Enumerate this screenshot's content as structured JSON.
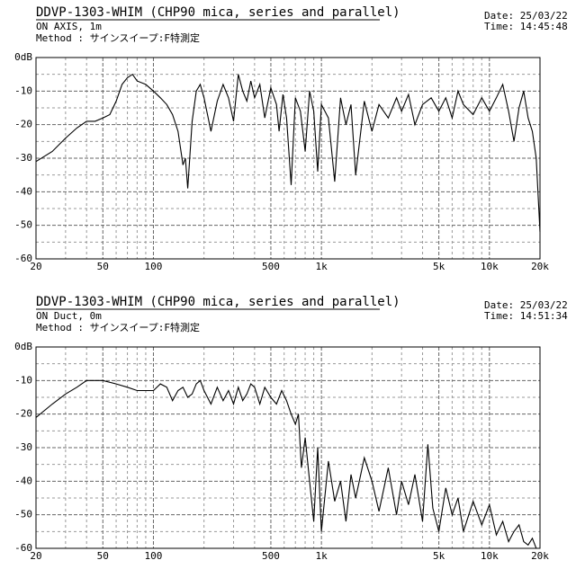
{
  "chart_data": [
    {
      "type": "line",
      "title": "DDVP-1303-WHIM (CHP90 mica, series and parallel)",
      "subtitle": "ON AXIS, 1m",
      "method": "Method : サインスイープ:F特測定",
      "date": "Date: 25/03/22",
      "time": "Time: 14:45:48",
      "log_x": true,
      "grid": true,
      "color": "#000000",
      "xlim": [
        20,
        20000
      ],
      "ylim": [
        -60,
        0
      ],
      "xticks": [
        20,
        50,
        100,
        500,
        {
          "value": 1000,
          "label": "1k"
        },
        {
          "value": 5000,
          "label": "5k"
        },
        {
          "value": 10000,
          "label": "10k"
        },
        {
          "value": 20000,
          "label": "20k"
        }
      ],
      "xminor_ticks": [
        30,
        40,
        60,
        70,
        80,
        90,
        200,
        300,
        400,
        600,
        700,
        800,
        900,
        2000,
        3000,
        4000,
        6000,
        7000,
        8000,
        9000
      ],
      "yticks": [
        {
          "value": 0,
          "label": "0dB"
        },
        -10,
        -20,
        -30,
        -40,
        -50,
        -60
      ],
      "yminor_ticks": [
        -5,
        -15,
        -25,
        -35,
        -45,
        -55
      ],
      "x": [
        20,
        25,
        30,
        35,
        40,
        45,
        50,
        55,
        60,
        65,
        70,
        75,
        80,
        90,
        100,
        110,
        120,
        130,
        140,
        150,
        155,
        160,
        170,
        180,
        190,
        200,
        220,
        240,
        260,
        280,
        300,
        320,
        340,
        360,
        380,
        400,
        430,
        460,
        500,
        540,
        560,
        590,
        620,
        660,
        700,
        750,
        800,
        850,
        900,
        950,
        1000,
        1100,
        1200,
        1300,
        1400,
        1500,
        1600,
        1800,
        2000,
        2200,
        2500,
        2800,
        3000,
        3300,
        3600,
        4000,
        4500,
        5000,
        5500,
        6000,
        6500,
        7000,
        8000,
        9000,
        10000,
        11000,
        12000,
        13000,
        14000,
        15000,
        16000,
        17000,
        18000,
        19000,
        20000
      ],
      "values": [
        -31,
        -28,
        -24,
        -21,
        -19,
        -19,
        -18,
        -17,
        -13,
        -8,
        -6,
        -5,
        -7,
        -8,
        -10,
        -12,
        -14,
        -17,
        -22,
        -32,
        -30,
        -39,
        -19,
        -10,
        -8,
        -12,
        -22,
        -13,
        -8,
        -12,
        -19,
        -5,
        -10,
        -13,
        -7,
        -12,
        -8,
        -18,
        -9,
        -14,
        -22,
        -11,
        -18,
        -38,
        -12,
        -16,
        -28,
        -10,
        -16,
        -34,
        -14,
        -18,
        -37,
        -12,
        -20,
        -14,
        -35,
        -13,
        -22,
        -14,
        -18,
        -12,
        -16,
        -11,
        -20,
        -14,
        -12,
        -16,
        -12,
        -18,
        -10,
        -14,
        -17,
        -12,
        -16,
        -12,
        -8,
        -16,
        -25,
        -15,
        -10,
        -18,
        -22,
        -30,
        -52
      ]
    },
    {
      "type": "line",
      "title": "DDVP-1303-WHIM (CHP90 mica, series and parallel)",
      "subtitle": "ON Duct, 0m",
      "method": "Method : サインスイープ:F特測定",
      "date": "Date: 25/03/22",
      "time": "Time: 14:51:34",
      "log_x": true,
      "grid": true,
      "color": "#000000",
      "xlim": [
        20,
        20000
      ],
      "ylim": [
        -60,
        0
      ],
      "xticks": [
        20,
        50,
        100,
        500,
        {
          "value": 1000,
          "label": "1k"
        },
        {
          "value": 5000,
          "label": "5k"
        },
        {
          "value": 10000,
          "label": "10k"
        },
        {
          "value": 20000,
          "label": "20k"
        }
      ],
      "xminor_ticks": [
        30,
        40,
        60,
        70,
        80,
        90,
        200,
        300,
        400,
        600,
        700,
        800,
        900,
        2000,
        3000,
        4000,
        6000,
        7000,
        8000,
        9000
      ],
      "yticks": [
        {
          "value": 0,
          "label": "0dB"
        },
        -10,
        -20,
        -30,
        -40,
        -50,
        -60
      ],
      "yminor_ticks": [
        -5,
        -15,
        -25,
        -35,
        -45,
        -55
      ],
      "x": [
        20,
        25,
        30,
        35,
        40,
        50,
        60,
        70,
        80,
        90,
        100,
        110,
        120,
        130,
        140,
        150,
        160,
        170,
        180,
        190,
        200,
        220,
        240,
        260,
        280,
        300,
        320,
        340,
        360,
        380,
        400,
        430,
        460,
        500,
        540,
        580,
        620,
        660,
        700,
        730,
        760,
        800,
        850,
        900,
        950,
        1000,
        1100,
        1200,
        1300,
        1400,
        1500,
        1600,
        1800,
        2000,
        2200,
        2500,
        2800,
        3000,
        3300,
        3600,
        4000,
        4300,
        4600,
        5000,
        5500,
        6000,
        6500,
        7000,
        8000,
        9000,
        10000,
        11000,
        12000,
        13000,
        14000,
        15000,
        16000,
        17000,
        18000,
        19000,
        20000
      ],
      "values": [
        -21,
        -17,
        -14,
        -12,
        -10,
        -10,
        -11,
        -12,
        -13,
        -13,
        -13,
        -11,
        -12,
        -16,
        -13,
        -12,
        -15,
        -14,
        -11,
        -10,
        -13,
        -17,
        -12,
        -16,
        -13,
        -17,
        -12,
        -16,
        -14,
        -11,
        -12,
        -17,
        -12,
        -15,
        -17,
        -13,
        -16,
        -20,
        -23,
        -20,
        -36,
        -27,
        -40,
        -52,
        -30,
        -55,
        -34,
        -46,
        -40,
        -52,
        -38,
        -45,
        -33,
        -40,
        -49,
        -36,
        -50,
        -40,
        -47,
        -38,
        -52,
        -29,
        -48,
        -55,
        -42,
        -50,
        -45,
        -55,
        -46,
        -53,
        -47,
        -56,
        -52,
        -58,
        -55,
        -53,
        -58,
        -59,
        -57,
        -60,
        -60
      ]
    }
  ]
}
